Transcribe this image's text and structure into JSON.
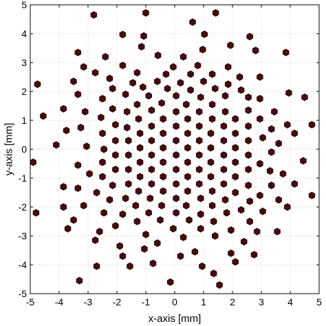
{
  "chart_data": {
    "type": "scatter",
    "xlabel": "x-axis [mm]",
    "ylabel": "y-axis [mm]",
    "xlim": [
      -5,
      5
    ],
    "ylim": [
      -5,
      5
    ],
    "xticks": [
      "-5",
      "-4",
      "-3",
      "-2",
      "-1",
      "0",
      "1",
      "2",
      "3",
      "4",
      "5"
    ],
    "yticks": [
      "-5",
      "-4",
      "-3",
      "-2",
      "-1",
      "0",
      "1",
      "2",
      "3",
      "4",
      "5"
    ],
    "grid": true,
    "marker": "hexagon",
    "marker_color": "#4a0a0e",
    "marker_edge_color": "#1a0204",
    "points": [
      [
        -2.8,
        4.65
      ],
      [
        -1.0,
        4.72
      ],
      [
        1.42,
        4.72
      ],
      [
        0.62,
        4.4
      ],
      [
        -1.8,
        3.97
      ],
      [
        -1.07,
        3.92
      ],
      [
        1.03,
        3.98
      ],
      [
        2.6,
        3.9
      ],
      [
        -3.35,
        3.35
      ],
      [
        -1.15,
        3.55
      ],
      [
        0.97,
        3.45
      ],
      [
        1.93,
        3.6
      ],
      [
        -2.4,
        3.2
      ],
      [
        -0.58,
        3.25
      ],
      [
        0.3,
        3.2
      ],
      [
        2.8,
        3.42
      ],
      [
        3.85,
        3.35
      ],
      [
        -3.15,
        2.85
      ],
      [
        -1.8,
        2.9
      ],
      [
        -0.05,
        2.85
      ],
      [
        0.8,
        2.9
      ],
      [
        1.85,
        2.85
      ],
      [
        -2.75,
        2.65
      ],
      [
        -1.3,
        2.65
      ],
      [
        -0.3,
        2.6
      ],
      [
        0.55,
        2.6
      ],
      [
        1.3,
        2.6
      ],
      [
        2.25,
        2.5
      ],
      [
        -4.75,
        2.25
      ],
      [
        -3.5,
        2.35
      ],
      [
        -2.25,
        2.45
      ],
      [
        -1.45,
        2.3
      ],
      [
        -0.6,
        2.35
      ],
      [
        0.2,
        2.3
      ],
      [
        1.0,
        2.35
      ],
      [
        1.85,
        2.25
      ],
      [
        2.95,
        2.5
      ],
      [
        -2.15,
        2.1
      ],
      [
        -1.1,
        2.15
      ],
      [
        -0.25,
        2.1
      ],
      [
        0.55,
        2.05
      ],
      [
        1.4,
        2.1
      ],
      [
        2.3,
        2.05
      ],
      [
        3.95,
        1.95
      ],
      [
        4.5,
        1.8
      ],
      [
        -2.5,
        1.75
      ],
      [
        -1.7,
        1.9
      ],
      [
        -0.9,
        1.85
      ],
      [
        0.05,
        1.85
      ],
      [
        0.9,
        1.8
      ],
      [
        1.75,
        1.85
      ],
      [
        2.55,
        1.8
      ],
      [
        -3.35,
        1.9
      ],
      [
        -1.3,
        1.55
      ],
      [
        -0.45,
        1.6
      ],
      [
        0.4,
        1.55
      ],
      [
        1.3,
        1.55
      ],
      [
        2.95,
        1.75
      ],
      [
        -3.85,
        1.4
      ],
      [
        -2.15,
        1.4
      ],
      [
        -1.65,
        1.3
      ],
      [
        -0.8,
        1.35
      ],
      [
        0.05,
        1.3
      ],
      [
        0.85,
        1.3
      ],
      [
        1.75,
        1.3
      ],
      [
        2.55,
        1.35
      ],
      [
        3.45,
        1.3
      ],
      [
        -3.1,
        1.3
      ],
      [
        -2.55,
        1.1
      ],
      [
        -1.25,
        1.05
      ],
      [
        -0.4,
        1.05
      ],
      [
        0.45,
        1.05
      ],
      [
        1.3,
        1.05
      ],
      [
        2.1,
        1.05
      ],
      [
        2.95,
        1.05
      ],
      [
        -4.55,
        1.15
      ],
      [
        -2.05,
        0.85
      ],
      [
        -1.65,
        0.75
      ],
      [
        -0.8,
        0.8
      ],
      [
        0.05,
        0.8
      ],
      [
        0.85,
        0.8
      ],
      [
        1.7,
        0.8
      ],
      [
        2.55,
        0.8
      ],
      [
        -3.25,
        0.75
      ],
      [
        -2.5,
        0.55
      ],
      [
        -1.2,
        0.55
      ],
      [
        -0.4,
        0.55
      ],
      [
        0.45,
        0.55
      ],
      [
        1.25,
        0.55
      ],
      [
        2.1,
        0.55
      ],
      [
        3.35,
        0.7
      ],
      [
        3.9,
        0.85
      ],
      [
        4.75,
        0.85
      ],
      [
        -3.75,
        0.65
      ],
      [
        -2.05,
        0.3
      ],
      [
        -1.6,
        0.3
      ],
      [
        -0.8,
        0.3
      ],
      [
        0.05,
        0.3
      ],
      [
        0.85,
        0.3
      ],
      [
        1.7,
        0.3
      ],
      [
        2.55,
        0.3
      ],
      [
        3.05,
        0.4
      ],
      [
        -4.1,
        0.15
      ],
      [
        -3.05,
        0.1
      ],
      [
        -2.45,
        0.0
      ],
      [
        -1.2,
        0.05
      ],
      [
        -0.4,
        0.05
      ],
      [
        0.45,
        0.05
      ],
      [
        1.25,
        0.05
      ],
      [
        2.1,
        0.05
      ],
      [
        3.6,
        0.2
      ],
      [
        4.15,
        0.55
      ],
      [
        -2.05,
        -0.2
      ],
      [
        -1.6,
        -0.2
      ],
      [
        -0.8,
        -0.2
      ],
      [
        0.05,
        -0.2
      ],
      [
        0.85,
        -0.2
      ],
      [
        1.7,
        -0.2
      ],
      [
        2.55,
        -0.2
      ],
      [
        3.35,
        -0.1
      ],
      [
        -3.35,
        -0.55
      ],
      [
        -2.5,
        -0.45
      ],
      [
        -1.2,
        -0.45
      ],
      [
        -0.4,
        -0.45
      ],
      [
        0.45,
        -0.45
      ],
      [
        1.25,
        -0.45
      ],
      [
        2.1,
        -0.45
      ],
      [
        2.95,
        -0.5
      ],
      [
        4.45,
        -0.4
      ],
      [
        -4.9,
        -0.45
      ],
      [
        -2.05,
        -0.7
      ],
      [
        -1.6,
        -0.7
      ],
      [
        -0.8,
        -0.7
      ],
      [
        0.05,
        -0.7
      ],
      [
        0.85,
        -0.7
      ],
      [
        1.7,
        -0.7
      ],
      [
        2.55,
        -0.7
      ],
      [
        3.3,
        -0.75
      ],
      [
        -2.95,
        -0.85
      ],
      [
        -2.5,
        -0.95
      ],
      [
        -1.2,
        -0.95
      ],
      [
        -0.4,
        -0.95
      ],
      [
        0.45,
        -0.95
      ],
      [
        1.25,
        -0.95
      ],
      [
        2.1,
        -0.95
      ],
      [
        3.75,
        -0.85
      ],
      [
        -3.85,
        -1.3
      ],
      [
        -2.15,
        -1.25
      ],
      [
        -1.6,
        -1.2
      ],
      [
        -0.8,
        -1.2
      ],
      [
        0.05,
        -1.2
      ],
      [
        0.85,
        -1.2
      ],
      [
        1.7,
        -1.2
      ],
      [
        2.55,
        -1.25
      ],
      [
        3.35,
        -1.25
      ],
      [
        -3.35,
        -1.35
      ],
      [
        -2.7,
        -1.5
      ],
      [
        -1.25,
        -1.45
      ],
      [
        -0.4,
        -1.45
      ],
      [
        0.45,
        -1.45
      ],
      [
        1.3,
        -1.45
      ],
      [
        2.1,
        -1.5
      ],
      [
        2.95,
        -1.6
      ],
      [
        4.15,
        -1.2
      ],
      [
        -2.25,
        -1.75
      ],
      [
        -1.7,
        -1.7
      ],
      [
        -0.85,
        -1.7
      ],
      [
        0.05,
        -1.7
      ],
      [
        0.9,
        -1.7
      ],
      [
        1.75,
        -1.75
      ],
      [
        2.6,
        -1.8
      ],
      [
        3.6,
        -1.75
      ],
      [
        -3.15,
        -1.95
      ],
      [
        -1.35,
        -1.95
      ],
      [
        -0.45,
        -1.95
      ],
      [
        0.4,
        -1.95
      ],
      [
        1.3,
        -1.95
      ],
      [
        2.3,
        -2.1
      ],
      [
        3.05,
        -2.15
      ],
      [
        -2.45,
        -2.2
      ],
      [
        -1.8,
        -2.25
      ],
      [
        -0.9,
        -2.2
      ],
      [
        0.05,
        -2.2
      ],
      [
        0.9,
        -2.25
      ],
      [
        1.8,
        -2.2
      ],
      [
        3.9,
        -2.0
      ],
      [
        4.75,
        -1.6
      ],
      [
        -3.85,
        -2.0
      ],
      [
        -1.3,
        -2.5
      ],
      [
        -0.5,
        -2.45
      ],
      [
        0.5,
        -2.45
      ],
      [
        1.35,
        -2.5
      ],
      [
        2.6,
        -2.5
      ],
      [
        -2.05,
        -2.65
      ],
      [
        -0.05,
        -2.75
      ],
      [
        0.9,
        -2.75
      ],
      [
        1.95,
        -2.8
      ],
      [
        -3.5,
        -2.45
      ],
      [
        -2.6,
        -2.85
      ],
      [
        -1.0,
        -2.95
      ],
      [
        0.3,
        -3.05
      ],
      [
        1.4,
        -3.0
      ],
      [
        2.85,
        -2.85
      ],
      [
        3.55,
        -2.85
      ],
      [
        -4.8,
        -2.2
      ],
      [
        -3.7,
        -2.75
      ],
      [
        -2.75,
        -3.15
      ],
      [
        -1.9,
        -3.35
      ],
      [
        -0.6,
        -3.25
      ],
      [
        0.7,
        -3.55
      ],
      [
        2.4,
        -3.2
      ],
      [
        -1.05,
        -3.45
      ],
      [
        1.95,
        -3.6
      ],
      [
        -1.8,
        -3.7
      ],
      [
        0.2,
        -3.7
      ],
      [
        2.75,
        -3.65
      ],
      [
        -2.7,
        -4.05
      ],
      [
        -1.55,
        -4.05
      ],
      [
        -0.75,
        -3.95
      ],
      [
        0.95,
        -4.05
      ],
      [
        2.1,
        -3.9
      ],
      [
        -0.15,
        -4.6
      ],
      [
        1.55,
        -4.7
      ],
      [
        -3.3,
        -4.55
      ],
      [
        1.35,
        -4.3
      ]
    ]
  }
}
